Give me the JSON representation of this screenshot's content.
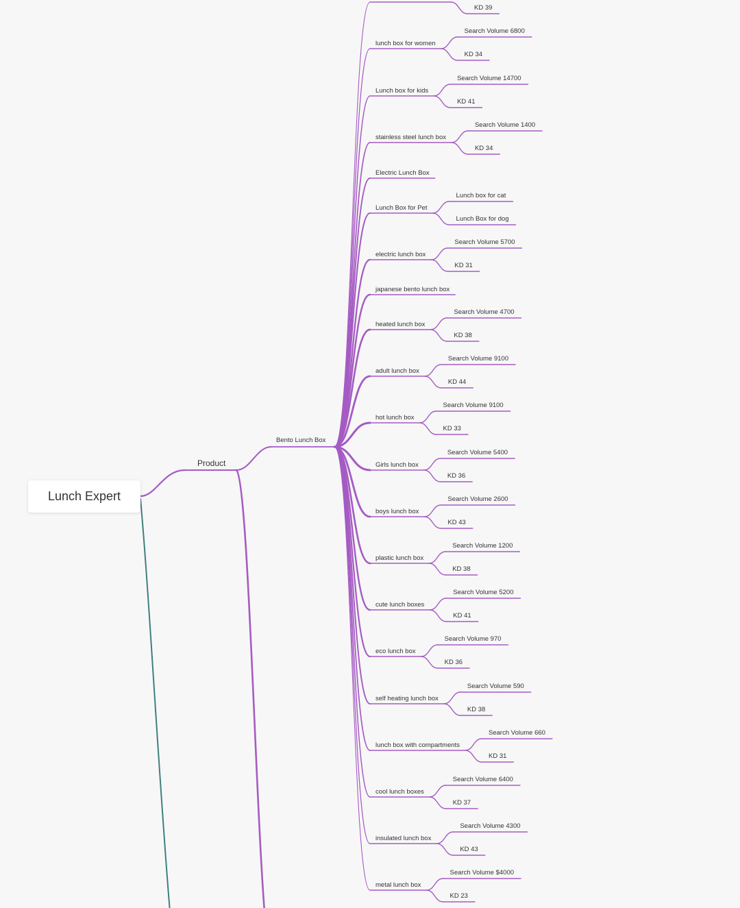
{
  "colors": {
    "branch": "#a55bc3",
    "root_link": "#3f7f80",
    "background": "#f7f7f7",
    "text": "#333333"
  },
  "root": {
    "label": "Lunch Expert"
  },
  "category": {
    "label": "Product"
  },
  "subcategory": {
    "label": "Bento Lunch Box"
  },
  "nodes": [
    {
      "label": "",
      "children": [
        "KD 39"
      ]
    },
    {
      "label": "lunch box for women",
      "children": [
        "Search Volume 6800",
        "KD 34"
      ]
    },
    {
      "label": "Lunch box for kids",
      "children": [
        "Search Volume 14700",
        "KD 41"
      ]
    },
    {
      "label": "stainless steel lunch box",
      "children": [
        "Search Volume 1400",
        "KD 34"
      ]
    },
    {
      "label": "Electric Lunch Box",
      "children": []
    },
    {
      "label": "Lunch Box for Pet",
      "children": [
        "Lunch box for cat",
        "Lunch Box for dog"
      ]
    },
    {
      "label": "electric lunch box",
      "children": [
        "Search Volume 5700",
        "KD 31"
      ]
    },
    {
      "label": "japanese bento lunch box",
      "children": []
    },
    {
      "label": "heated lunch box",
      "children": [
        "Search Volume 4700",
        "KD 38"
      ]
    },
    {
      "label": "adult lunch box",
      "children": [
        "Search Volume 9100",
        "KD 44"
      ]
    },
    {
      "label": "hot lunch box",
      "children": [
        "Search Volume 9100",
        "KD 33"
      ]
    },
    {
      "label": "Girls lunch box",
      "children": [
        "Search Volume 5400",
        "KD 36"
      ]
    },
    {
      "label": "boys lunch box",
      "children": [
        "Search Volume 2600",
        "KD 43"
      ]
    },
    {
      "label": "plastic lunch box",
      "children": [
        "Search Volume 1200",
        "KD 38"
      ]
    },
    {
      "label": "cute lunch boxes",
      "children": [
        "Search Volume 5200",
        "KD 41"
      ]
    },
    {
      "label": "eco lunch box",
      "children": [
        "Search Volume 970",
        "KD 36"
      ]
    },
    {
      "label": "self heating lunch box",
      "children": [
        "Search Volume 590",
        "KD 38"
      ]
    },
    {
      "label": "lunch box with compartments",
      "children": [
        "Search Volume 660",
        "KD 31"
      ]
    },
    {
      "label": "cool lunch boxes",
      "children": [
        "Search Volume 6400",
        "KD 37"
      ]
    },
    {
      "label": "insulated lunch box",
      "children": [
        "Search Volume 4300",
        "KD 43"
      ]
    },
    {
      "label": "metal lunch box",
      "children": [
        "Search Volume $4000",
        "KD 23"
      ]
    }
  ]
}
